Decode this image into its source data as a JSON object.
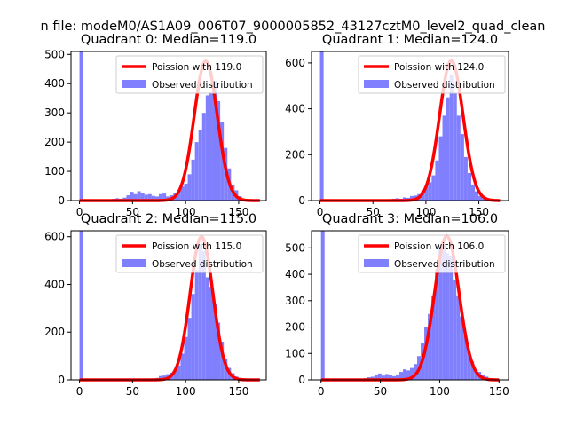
{
  "suptitle": "n file: modeM0/AS1A09_006T07_9000005852_43127cztM0_level2_quad_clean",
  "colors": {
    "poisson": "#ff0000",
    "observed": "#8080ff",
    "axis": "#000000",
    "background": "#ffffff"
  },
  "chart_data": [
    {
      "type": "bar",
      "title": "Quadrant 0: Median=119.0",
      "xlim": [
        -8,
        176
      ],
      "ylim": [
        0,
        510
      ],
      "xticks": [
        0,
        50,
        100,
        150
      ],
      "yticks": [
        0,
        100,
        200,
        300,
        400,
        500
      ],
      "legend": {
        "location": "top-right",
        "entries": [
          "Poission with 119.0",
          "Observed distribution"
        ]
      },
      "poisson_mean": 119.0,
      "poisson_peak": 477,
      "poisson_x_range": [
        0,
        170
      ],
      "hist_bin_width": 3.4,
      "hist": [
        [
          0,
          510
        ],
        [
          3.4,
          2
        ],
        [
          6.8,
          2
        ],
        [
          10.2,
          2
        ],
        [
          13.6,
          3
        ],
        [
          17,
          3
        ],
        [
          20.4,
          3
        ],
        [
          23.8,
          3
        ],
        [
          27.2,
          4
        ],
        [
          30.6,
          6
        ],
        [
          34,
          8
        ],
        [
          37.4,
          6
        ],
        [
          40.8,
          10
        ],
        [
          44.2,
          18
        ],
        [
          47.6,
          30
        ],
        [
          51,
          22
        ],
        [
          54.4,
          32
        ],
        [
          57.8,
          25
        ],
        [
          61.2,
          20
        ],
        [
          64.6,
          22
        ],
        [
          68,
          16
        ],
        [
          71.4,
          14
        ],
        [
          74.8,
          22
        ],
        [
          78.2,
          24
        ],
        [
          81.6,
          14
        ],
        [
          85,
          18
        ],
        [
          88.4,
          26
        ],
        [
          91.8,
          34
        ],
        [
          95.2,
          48
        ],
        [
          98.6,
          58
        ],
        [
          102,
          90
        ],
        [
          105.4,
          140
        ],
        [
          108.8,
          200
        ],
        [
          112.2,
          240
        ],
        [
          115.6,
          300
        ],
        [
          119,
          360
        ],
        [
          122.4,
          370
        ],
        [
          125.8,
          410
        ],
        [
          129.2,
          340
        ],
        [
          132.6,
          270
        ],
        [
          136,
          180
        ],
        [
          139.4,
          110
        ],
        [
          142.8,
          55
        ],
        [
          146.2,
          35
        ],
        [
          149.6,
          15
        ],
        [
          153,
          6
        ],
        [
          156.4,
          4
        ],
        [
          159.8,
          2
        ],
        [
          163.2,
          1
        ]
      ]
    },
    {
      "type": "bar",
      "title": "Quadrant 1: Median=124.0",
      "xlim": [
        -8,
        178
      ],
      "ylim": [
        0,
        650
      ],
      "xticks": [
        0,
        50,
        100,
        150
      ],
      "yticks": [
        0,
        200,
        400,
        600
      ],
      "legend": {
        "location": "top-right",
        "entries": [
          "Poission with 124.0",
          "Observed distribution"
        ]
      },
      "poisson_mean": 124.0,
      "poisson_peak": 610,
      "poisson_x_range": [
        0,
        170
      ],
      "hist_bin_width": 3.4,
      "hist": [
        [
          0,
          650
        ],
        [
          3.4,
          2
        ],
        [
          6.8,
          2
        ],
        [
          10.2,
          2
        ],
        [
          13.6,
          2
        ],
        [
          17,
          2
        ],
        [
          20.4,
          2
        ],
        [
          23.8,
          2
        ],
        [
          27.2,
          2
        ],
        [
          30.6,
          2
        ],
        [
          34,
          2
        ],
        [
          37.4,
          2
        ],
        [
          40.8,
          2
        ],
        [
          44.2,
          3
        ],
        [
          47.6,
          3
        ],
        [
          51,
          4
        ],
        [
          54.4,
          4
        ],
        [
          57.8,
          4
        ],
        [
          61.2,
          5
        ],
        [
          64.6,
          6
        ],
        [
          68,
          8
        ],
        [
          71.4,
          10
        ],
        [
          74.8,
          8
        ],
        [
          78.2,
          14
        ],
        [
          81.6,
          12
        ],
        [
          85,
          20
        ],
        [
          88.4,
          22
        ],
        [
          91.8,
          28
        ],
        [
          95.2,
          40
        ],
        [
          98.6,
          60
        ],
        [
          102,
          80
        ],
        [
          105.4,
          110
        ],
        [
          108.8,
          175
        ],
        [
          112.2,
          280
        ],
        [
          115.6,
          370
        ],
        [
          119,
          450
        ],
        [
          122.4,
          550
        ],
        [
          125.8,
          470
        ],
        [
          129.2,
          370
        ],
        [
          132.6,
          290
        ],
        [
          136,
          190
        ],
        [
          139.4,
          120
        ],
        [
          142.8,
          70
        ],
        [
          146.2,
          40
        ],
        [
          149.6,
          20
        ],
        [
          153,
          10
        ],
        [
          156.4,
          6
        ],
        [
          159.8,
          4
        ]
      ]
    },
    {
      "type": "bar",
      "title": "Quadrant 2: Median=115.0",
      "xlim": [
        -8,
        176
      ],
      "ylim": [
        0,
        625
      ],
      "xticks": [
        0,
        50,
        100,
        150
      ],
      "yticks": [
        0,
        200,
        400,
        600
      ],
      "legend": {
        "location": "top-right",
        "entries": [
          "Poission with 115.0",
          "Observed distribution"
        ]
      },
      "poisson_mean": 115.0,
      "poisson_peak": 600,
      "poisson_x_range": [
        0,
        170
      ],
      "hist_bin_width": 3.4,
      "hist": [
        [
          0,
          625
        ],
        [
          3.4,
          2
        ],
        [
          6.8,
          2
        ],
        [
          10.2,
          2
        ],
        [
          13.6,
          2
        ],
        [
          17,
          2
        ],
        [
          20.4,
          2
        ],
        [
          23.8,
          2
        ],
        [
          27.2,
          2
        ],
        [
          30.6,
          2
        ],
        [
          34,
          2
        ],
        [
          37.4,
          2
        ],
        [
          40.8,
          2
        ],
        [
          44.2,
          2
        ],
        [
          47.6,
          2
        ],
        [
          51,
          2
        ],
        [
          54.4,
          2
        ],
        [
          57.8,
          2
        ],
        [
          61.2,
          3
        ],
        [
          64.6,
          4
        ],
        [
          68,
          6
        ],
        [
          71.4,
          8
        ],
        [
          74.8,
          16
        ],
        [
          78.2,
          18
        ],
        [
          81.6,
          24
        ],
        [
          85,
          30
        ],
        [
          88.4,
          40
        ],
        [
          91.8,
          60
        ],
        [
          95.2,
          110
        ],
        [
          98.6,
          180
        ],
        [
          102,
          260
        ],
        [
          105.4,
          360
        ],
        [
          108.8,
          460
        ],
        [
          112.2,
          570
        ],
        [
          115.6,
          540
        ],
        [
          119,
          430
        ],
        [
          122.4,
          390
        ],
        [
          125.8,
          320
        ],
        [
          129.2,
          240
        ],
        [
          132.6,
          160
        ],
        [
          136,
          90
        ],
        [
          139.4,
          50
        ],
        [
          142.8,
          28
        ],
        [
          146.2,
          14
        ],
        [
          149.6,
          8
        ],
        [
          153,
          4
        ],
        [
          156.4,
          2
        ],
        [
          159.8,
          2
        ]
      ]
    },
    {
      "type": "bar",
      "title": "Quadrant 3: Median=106.0",
      "xlim": [
        -8,
        158
      ],
      "ylim": [
        0,
        565
      ],
      "xticks": [
        0,
        50,
        100,
        150
      ],
      "yticks": [
        0,
        100,
        200,
        300,
        400,
        500
      ],
      "legend": {
        "location": "top-right",
        "entries": [
          "Poission with 106.0",
          "Observed distribution"
        ]
      },
      "poisson_mean": 106.0,
      "poisson_peak": 545,
      "poisson_x_range": [
        0,
        150
      ],
      "hist_bin_width": 3.0,
      "hist": [
        [
          0,
          565
        ],
        [
          3,
          2
        ],
        [
          6,
          2
        ],
        [
          9,
          2
        ],
        [
          12,
          2
        ],
        [
          15,
          2
        ],
        [
          18,
          2
        ],
        [
          21,
          2
        ],
        [
          24,
          2
        ],
        [
          27,
          2
        ],
        [
          30,
          3
        ],
        [
          33,
          4
        ],
        [
          36,
          6
        ],
        [
          39,
          10
        ],
        [
          42,
          12
        ],
        [
          45,
          20
        ],
        [
          48,
          24
        ],
        [
          51,
          16
        ],
        [
          54,
          22
        ],
        [
          57,
          18
        ],
        [
          60,
          14
        ],
        [
          63,
          20
        ],
        [
          66,
          30
        ],
        [
          69,
          40
        ],
        [
          72,
          36
        ],
        [
          75,
          45
        ],
        [
          78,
          60
        ],
        [
          81,
          90
        ],
        [
          84,
          140
        ],
        [
          87,
          200
        ],
        [
          90,
          250
        ],
        [
          93,
          320
        ],
        [
          96,
          420
        ],
        [
          99,
          500
        ],
        [
          102,
          510
        ],
        [
          105,
          480
        ],
        [
          108,
          470
        ],
        [
          111,
          380
        ],
        [
          114,
          320
        ],
        [
          117,
          240
        ],
        [
          120,
          170
        ],
        [
          123,
          110
        ],
        [
          126,
          70
        ],
        [
          129,
          40
        ],
        [
          132,
          30
        ],
        [
          135,
          20
        ],
        [
          138,
          12
        ],
        [
          141,
          6
        ],
        [
          144,
          3
        ],
        [
          147,
          2
        ]
      ]
    }
  ]
}
